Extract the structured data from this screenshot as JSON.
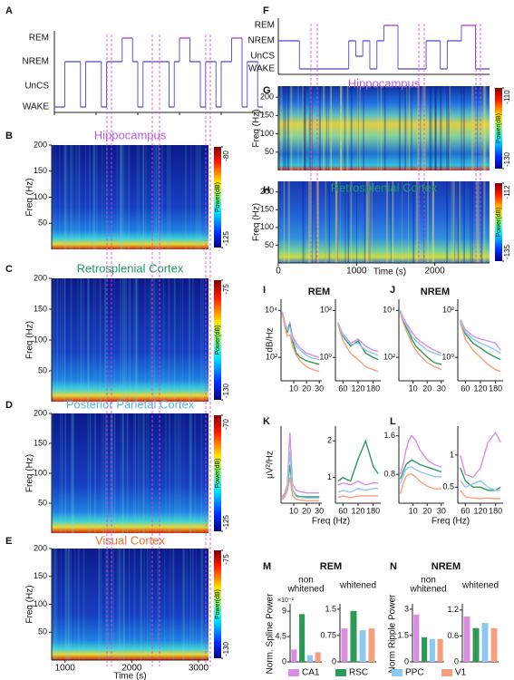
{
  "panel_letters": [
    "A",
    "B",
    "C",
    "D",
    "E",
    "F",
    "G",
    "H",
    "I",
    "J",
    "K",
    "L",
    "M",
    "N"
  ],
  "groups": [
    {
      "name": "CA1",
      "color": "#d98ee0"
    },
    {
      "name": "RSC",
      "color": "#2e9a58"
    },
    {
      "name": "PPC",
      "color": "#8ec8f0"
    },
    {
      "name": "V1",
      "color": "#f5a07c"
    }
  ],
  "hypnograms": [
    {
      "levels": [
        "REM",
        "NREM",
        "UnCS",
        "WAKE"
      ],
      "states": [
        "WAKE",
        "WAKE",
        "NREM",
        "NREM",
        "NREM",
        "WAKE",
        "NREM",
        "NREM",
        "NREM",
        "WAKE",
        "NREM",
        "NREM",
        "NREM",
        "REM",
        "REM",
        "NREM",
        "WAKE",
        "NREM",
        "NREM",
        "NREM",
        "NREM",
        "NREM",
        "WAKE",
        "NREM",
        "REM",
        "REM",
        "NREM",
        "NREM",
        "WAKE",
        "NREM",
        "NREM",
        "WAKE",
        "NREM",
        "NREM",
        "REM",
        "REM",
        "WAKE",
        "NREM",
        "NREM",
        "WAKE"
      ]
    },
    {
      "levels": [
        "REM",
        "NREM",
        "UnCS",
        "WAKE"
      ],
      "states": [
        "NREM",
        "NREM",
        "NREM",
        "WAKE",
        "WAKE",
        "WAKE",
        "WAKE",
        "WAKE",
        "WAKE",
        "WAKE",
        "NREM",
        "UnCS",
        "NREM",
        "WAKE",
        "NREM",
        "REM",
        "REM",
        "WAKE",
        "WAKE",
        "WAKE",
        "WAKE",
        "NREM",
        "NREM",
        "WAKE",
        "NREM",
        "NREM",
        "REM",
        "REM",
        "WAKE",
        "WAKE"
      ]
    }
  ],
  "spectrograms": [
    {
      "title": "Hippocampus",
      "title_color": "#b25fd8",
      "ylabel": "Freq (Hz)",
      "ylim": [
        0,
        200
      ],
      "yticks": [
        50,
        100,
        150,
        200
      ],
      "cbar_label": "Power(dB)",
      "cbar_ticks": [
        -80,
        -125
      ]
    },
    {
      "title": "Retrosplenial Cortex",
      "title_color": "#1f9a68",
      "ylabel": "Freq (Hz)",
      "ylim": [
        0,
        200
      ],
      "yticks": [
        50,
        100,
        150,
        200
      ],
      "cbar_label": "Power(dB)",
      "cbar_ticks": [
        -75,
        -130
      ]
    },
    {
      "title": "Posterior Parietal Cortex",
      "title_color": "#5ab4e8",
      "ylabel": "Freq (Hz)",
      "ylim": [
        0,
        200
      ],
      "yticks": [
        50,
        100,
        150,
        200
      ],
      "cbar_label": "Power(dB)",
      "cbar_ticks": [
        -70,
        -125
      ]
    },
    {
      "title": "Visual Cortex",
      "title_color": "#f07030",
      "ylabel": "Freq (Hz)",
      "ylim": [
        0,
        200
      ],
      "yticks": [
        50,
        100,
        150,
        200
      ],
      "cbar_label": "Power(dB)",
      "cbar_ticks": [
        -75,
        -130
      ],
      "xlim": [
        800,
        3150
      ],
      "xticks": [
        1000,
        2000,
        3000
      ],
      "xlabel": "Time (s)"
    },
    {
      "title": "Hippocampus",
      "title_color": "#b25fd8",
      "ylabel": "Freq (Hz)",
      "ylim": [
        0,
        230
      ],
      "yticks": [
        50,
        100,
        150,
        200
      ],
      "cbar_label": "Power(dB)",
      "cbar_ticks": [
        -110,
        -130
      ]
    },
    {
      "title": "Retrosplenial Cortex",
      "title_color": "#1f9a68",
      "ylabel": "Freq (Hz)",
      "ylim": [
        0,
        230
      ],
      "yticks": [
        50,
        100,
        150,
        200
      ],
      "cbar_label": "Power(dB)",
      "cbar_ticks": [
        -112,
        -135
      ],
      "xlim": [
        0,
        2700
      ],
      "xticks": [
        0,
        1000,
        2000
      ],
      "xlabel": "Time (s)"
    }
  ],
  "spectra": {
    "headers": [
      "REM",
      "NREM"
    ],
    "rows": [
      {
        "ylabel": "dB/Hz",
        "plots": [
          {
            "log": true,
            "xlim": [
              0,
              32
            ],
            "xticks": [
              10,
              20,
              30
            ],
            "ylim": [
              10,
              30000
            ],
            "yticks": [
              {
                "value": 10000,
                "label": "10⁴"
              },
              {
                "value": 100,
                "label": "10²"
              }
            ],
            "x": [
              1,
              3,
              5,
              7,
              9,
              12,
              15,
              20,
              25,
              30
            ],
            "values": [
              [
                8000,
                3000,
                1500,
                3000,
                800,
                400,
                250,
                150,
                120,
                100
              ],
              [
                8000,
                2500,
                1200,
                2500,
                500,
                150,
                100,
                70,
                60,
                50
              ],
              [
                9000,
                3000,
                1500,
                2000,
                600,
                300,
                200,
                120,
                90,
                80
              ],
              [
                7000,
                2000,
                800,
                900,
                300,
                120,
                70,
                40,
                30,
                25
              ]
            ]
          },
          {
            "log": true,
            "xlim": [
              30,
              210
            ],
            "xticks": [
              60,
              120,
              180
            ],
            "ylim": [
              0.1,
              300
            ],
            "yticks": [
              {
                "value": 100,
                "label": "10²"
              },
              {
                "value": 1,
                "label": "10⁰"
              }
            ],
            "x": [
              40,
              60,
              90,
              120,
              150,
              180,
              200
            ],
            "values": [
              [
                30,
                10,
                4,
                6,
                3,
                2,
                1.8
              ],
              [
                30,
                8,
                3,
                5,
                1.5,
                1,
                0.8
              ],
              [
                30,
                9,
                3.5,
                4,
                2,
                1.5,
                1.2
              ],
              [
                25,
                5,
                1.5,
                0.8,
                0.4,
                0.3,
                0.25
              ]
            ]
          },
          {
            "log": true,
            "xlim": [
              0,
              32
            ],
            "xticks": [
              10,
              20,
              30
            ],
            "ylim": [
              10,
              30000
            ],
            "yticks": [
              {
                "value": 10000,
                "label": "10⁴"
              },
              {
                "value": 100,
                "label": "10²"
              }
            ],
            "x": [
              1,
              3,
              5,
              7,
              9,
              12,
              15,
              20,
              25,
              30
            ],
            "values": [
              [
                10000,
                5000,
                3000,
                2000,
                1200,
                700,
                500,
                300,
                200,
                150
              ],
              [
                9000,
                4000,
                2000,
                1200,
                600,
                300,
                200,
                100,
                60,
                50
              ],
              [
                10000,
                4500,
                2500,
                1500,
                800,
                500,
                350,
                200,
                150,
                120
              ],
              [
                8000,
                3000,
                1500,
                800,
                400,
                200,
                120,
                60,
                40,
                30
              ]
            ]
          },
          {
            "log": true,
            "xlim": [
              30,
              210
            ],
            "xticks": [
              60,
              120,
              180
            ],
            "ylim": [
              0.1,
              300
            ],
            "yticks": [
              {
                "value": 100,
                "label": "10²"
              },
              {
                "value": 1,
                "label": "10⁰"
              }
            ],
            "x": [
              40,
              60,
              90,
              120,
              150,
              180,
              200
            ],
            "values": [
              [
                40,
                15,
                8,
                6,
                5,
                4,
                2
              ],
              [
                35,
                10,
                4,
                2.5,
                1.5,
                1,
                0.8
              ],
              [
                38,
                12,
                6,
                4,
                3,
                2,
                1.5
              ],
              [
                30,
                6,
                2,
                1,
                0.5,
                0.3,
                0.25
              ]
            ]
          }
        ]
      },
      {
        "ylabel": "μV²/Hz",
        "xlabel": "Freq (Hz)",
        "plots": [
          {
            "log": false,
            "xlim": [
              0,
              32
            ],
            "xticks": [
              10,
              20,
              30
            ],
            "ylim": [
              0,
              6
            ],
            "yticks": [],
            "x": [
              1,
              3,
              5,
              7,
              9,
              12,
              15,
              20,
              25,
              30
            ],
            "values": [
              [
                0.5,
                0.8,
                1.5,
                5.5,
                1.5,
                1,
                0.9,
                0.8,
                0.8,
                0.8
              ],
              [
                0.4,
                0.6,
                1.2,
                3.0,
                1.0,
                0.6,
                0.5,
                0.5,
                0.5,
                0.5
              ],
              [
                0.4,
                0.6,
                1.3,
                4,
                1,
                0.5,
                0.45,
                0.4,
                0.4,
                0.4
              ],
              [
                0.3,
                0.5,
                1,
                2,
                0.6,
                0.3,
                0.25,
                0.2,
                0.2,
                0.2
              ]
            ]
          },
          {
            "log": false,
            "xlim": [
              30,
              210
            ],
            "xticks": [
              60,
              120,
              180
            ],
            "ylim": [
              0.3,
              2.4
            ],
            "yticks": [
              1,
              2
            ],
            "x": [
              40,
              60,
              90,
              120,
              150,
              180,
              200
            ],
            "values": [
              [
                0.8,
                0.85,
                0.8,
                0.9,
                0.8,
                0.85,
                0.85
              ],
              [
                0.9,
                1.0,
                0.9,
                1.5,
                2.0,
                1.3,
                1.1
              ],
              [
                0.6,
                0.65,
                0.6,
                0.7,
                0.65,
                0.7,
                0.7
              ],
              [
                0.45,
                0.5,
                0.45,
                0.5,
                0.5,
                0.5,
                0.5
              ]
            ]
          },
          {
            "log": false,
            "xlim": [
              0,
              32
            ],
            "xticks": [
              10,
              20,
              30
            ],
            "ylim": [
              0.2,
              1.8
            ],
            "yticks": [
              0.8,
              1.6
            ],
            "x": [
              1,
              3,
              5,
              7,
              9,
              12,
              15,
              20,
              25,
              30
            ],
            "values": [
              [
                0.8,
                1.0,
                1.3,
                1.5,
                1.6,
                1.5,
                1.3,
                1.1,
                1.0,
                0.95
              ],
              [
                0.7,
                0.85,
                1.0,
                1.05,
                1.1,
                1.05,
                1.0,
                0.95,
                0.9,
                0.85
              ],
              [
                0.6,
                0.75,
                0.9,
                0.95,
                0.95,
                0.9,
                0.85,
                0.8,
                0.75,
                0.75
              ],
              [
                0.4,
                0.6,
                0.75,
                0.8,
                0.8,
                0.75,
                0.65,
                0.55,
                0.5,
                0.5
              ]
            ]
          },
          {
            "log": false,
            "xlim": [
              30,
              210
            ],
            "xticks": [
              60,
              120,
              180
            ],
            "ylim": [
              0.25,
              1.45
            ],
            "yticks": [
              0.5,
              1
            ],
            "x": [
              40,
              60,
              90,
              120,
              150,
              180,
              200
            ],
            "values": [
              [
                1.0,
                0.7,
                0.65,
                0.8,
                1.2,
                1.35,
                1.2
              ],
              [
                0.8,
                0.6,
                0.5,
                0.5,
                0.45,
                0.45,
                0.5
              ],
              [
                0.6,
                0.5,
                0.55,
                0.6,
                0.5,
                0.45,
                0.45
              ],
              [
                0.45,
                0.35,
                0.33,
                0.32,
                0.33,
                0.32,
                0.32
              ]
            ]
          }
        ]
      }
    ]
  },
  "bars": [
    {
      "title": "REM",
      "ylabel": "Norm. Spline Power",
      "subplots": [
        {
          "title": [
            "non",
            "whitened"
          ],
          "scale_label": "×10⁻²",
          "ylim": [
            0,
            10
          ],
          "yticks": [
            0,
            4.5,
            9
          ],
          "values": [
            2.2,
            8.5,
            1.2,
            1.7
          ]
        },
        {
          "title": [
            "whitened"
          ],
          "ylim": [
            0,
            1.6
          ],
          "yticks": [
            0,
            0.75,
            1.5
          ],
          "values": [
            0.95,
            1.45,
            0.9,
            0.95
          ]
        }
      ]
    },
    {
      "title": "NREM",
      "ylabel": "Norm Ripple Power",
      "subplots": [
        {
          "title": [
            "non",
            "whitened"
          ],
          "ylim": [
            0,
            3.2
          ],
          "yticks": [
            0,
            1.5,
            3
          ],
          "values": [
            2.7,
            1.4,
            1.3,
            1.3
          ]
        },
        {
          "title": [
            "whitened"
          ],
          "ylim": [
            0,
            1.3
          ],
          "yticks": [
            0,
            0.6,
            1.2
          ],
          "values": [
            1.05,
            0.78,
            0.9,
            0.78
          ]
        }
      ]
    }
  ]
}
